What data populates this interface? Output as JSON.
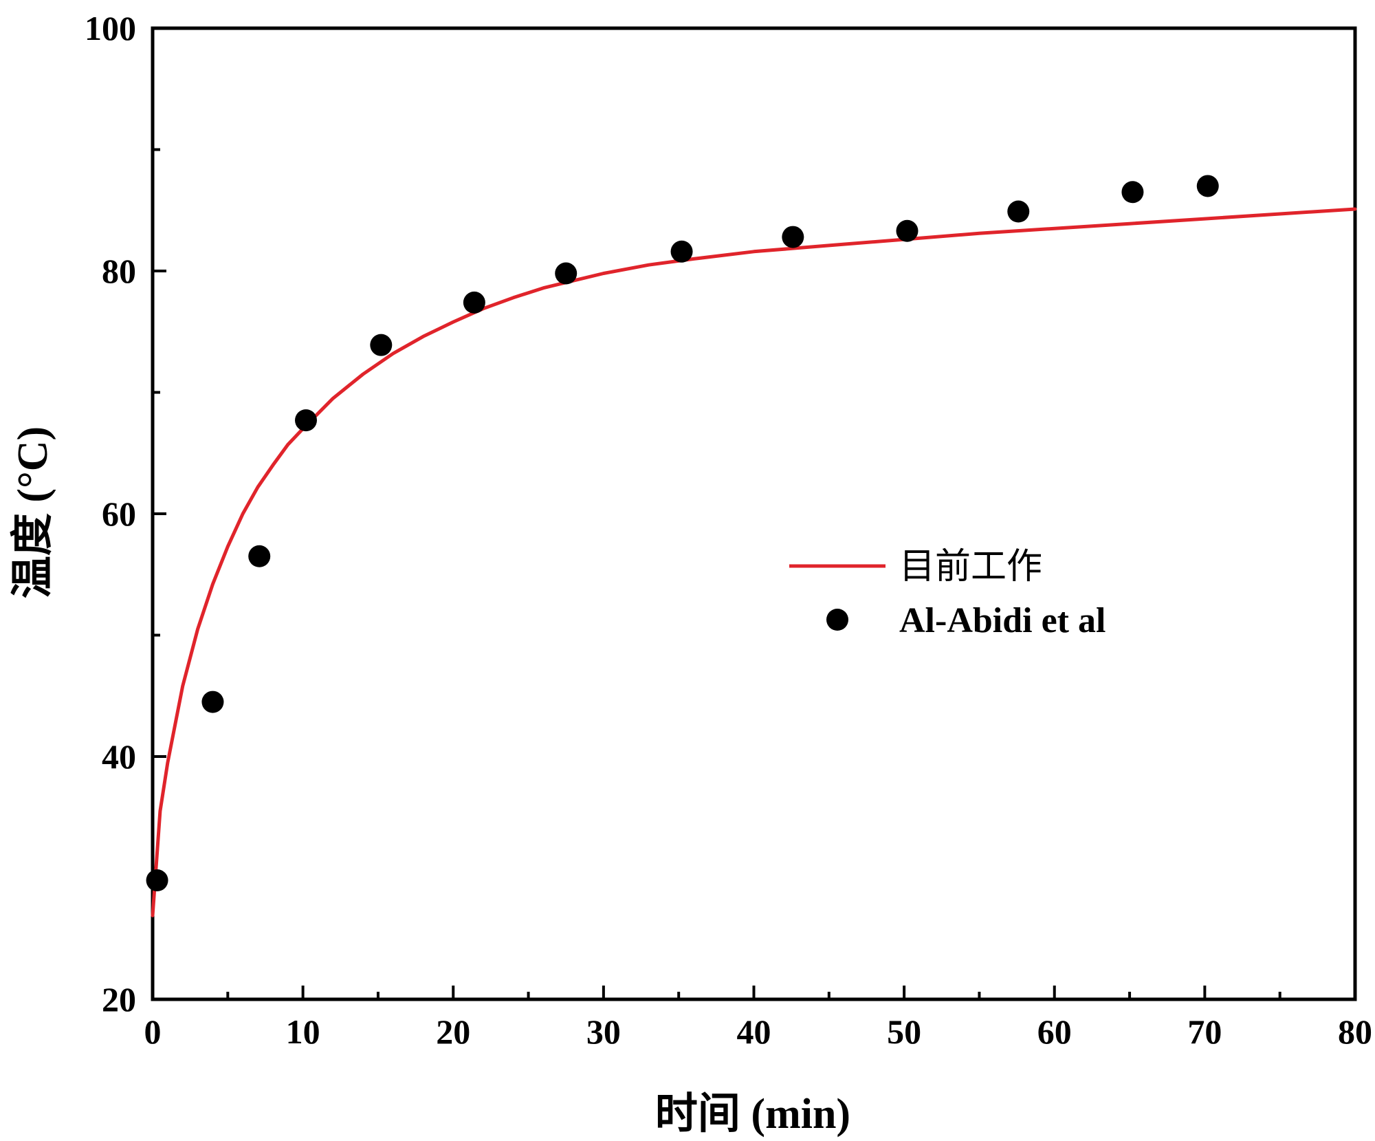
{
  "chart_data": {
    "type": "scatter",
    "xlabel": "时间 (min)",
    "ylabel": "温度 (°C)",
    "xlim": [
      0,
      80
    ],
    "ylim": [
      20,
      100
    ],
    "x_ticks": [
      0,
      10,
      20,
      30,
      40,
      50,
      60,
      70,
      80
    ],
    "y_ticks": [
      20,
      40,
      60,
      80,
      100
    ],
    "x_minor_step": 5,
    "y_minor_step": 10,
    "grid": false,
    "legend_position": "center-right",
    "series": [
      {
        "name": "目前工作",
        "kind": "line",
        "color": "#e0242b",
        "x": [
          0,
          0.5,
          1,
          2,
          3,
          4,
          5,
          6,
          7,
          8,
          9,
          10,
          12,
          14,
          16,
          18,
          20,
          22,
          24,
          26,
          28,
          30,
          33,
          36,
          40,
          45,
          50,
          55,
          60,
          65,
          70,
          75,
          80
        ],
        "y": [
          26.9,
          35.5,
          39.5,
          45.8,
          50.5,
          54.2,
          57.3,
          60.0,
          62.2,
          64.0,
          65.7,
          67.0,
          69.5,
          71.5,
          73.2,
          74.6,
          75.8,
          76.9,
          77.8,
          78.6,
          79.2,
          79.8,
          80.5,
          81.0,
          81.6,
          82.1,
          82.6,
          83.1,
          83.5,
          83.9,
          84.3,
          84.7,
          85.1
        ]
      },
      {
        "name": "Al-Abidi et al",
        "kind": "scatter",
        "color": "#000000",
        "x": [
          0.3,
          4,
          7.1,
          10.2,
          15.2,
          21.4,
          27.5,
          35.2,
          42.6,
          50.2,
          57.6,
          65.2,
          70.2
        ],
        "y": [
          29.8,
          44.5,
          56.5,
          67.7,
          73.9,
          77.4,
          79.8,
          81.6,
          82.8,
          83.3,
          84.9,
          86.5,
          87.0
        ]
      }
    ]
  }
}
